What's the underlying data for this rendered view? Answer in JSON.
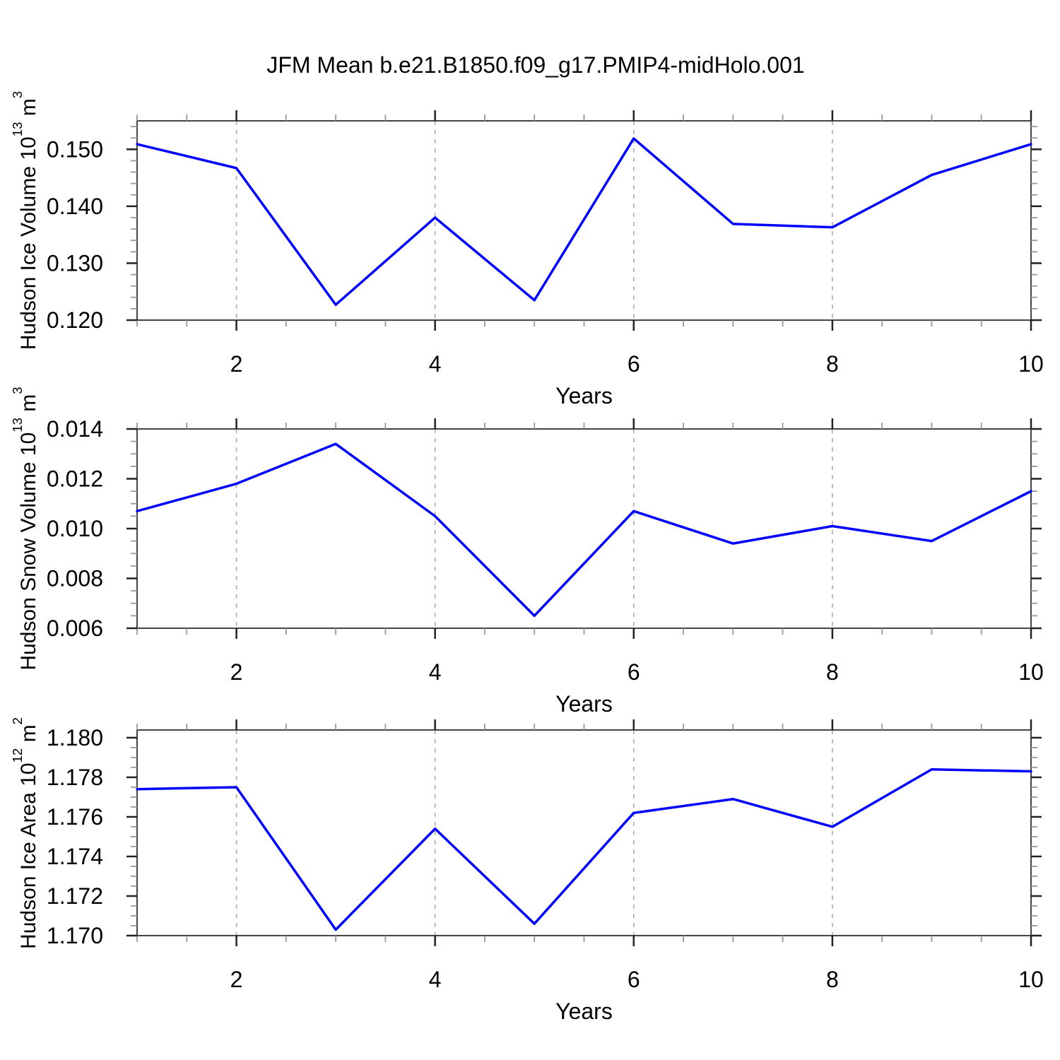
{
  "title": "JFM Mean b.e21.B1850.f09_g17.PMIP4-midHolo.001",
  "colors": {
    "line": "#0000ff",
    "frame": "#444444",
    "major_tick": "#222222",
    "minor_tick": "#999999",
    "gridline": "#aaaaaa",
    "text": "#000000",
    "background": "#ffffff"
  },
  "x_axis": {
    "label": "Years",
    "range": [
      1,
      10
    ],
    "major_ticks": [
      2,
      4,
      6,
      8,
      10
    ],
    "tick_labels": [
      "2",
      "4",
      "6",
      "8",
      "10"
    ],
    "minor_step": 0.5,
    "gridlines": [
      2,
      4,
      6,
      8
    ]
  },
  "chart_data": [
    {
      "type": "line",
      "series_name": "hudson-ice-volume",
      "xlabel": "Years",
      "ylabel_text": "Hudson Ice Volume",
      "ylabel_unit": {
        "base": "10",
        "exp": "13",
        "base2": "m",
        "exp2": "3"
      },
      "x": [
        1,
        2,
        3,
        4,
        5,
        6,
        7,
        8,
        9,
        10
      ],
      "values": [
        0.1509,
        0.1467,
        0.1227,
        0.138,
        0.1235,
        0.1519,
        0.1369,
        0.1363,
        0.1455,
        0.1509
      ],
      "ylim": [
        0.12,
        0.155
      ],
      "y_tick_values": [
        0.12,
        0.13,
        0.14,
        0.15
      ],
      "y_tick_labels": [
        "0.120",
        "0.130",
        "0.140",
        "0.150"
      ],
      "y_minor_step": 0.002,
      "grid": "vertical-dashed"
    },
    {
      "type": "line",
      "series_name": "hudson-snow-volume",
      "xlabel": "Years",
      "ylabel_text": "Hudson Snow Volume",
      "ylabel_unit": {
        "base": "10",
        "exp": "13",
        "base2": "m",
        "exp2": "3"
      },
      "x": [
        1,
        2,
        3,
        4,
        5,
        6,
        7,
        8,
        9,
        10
      ],
      "values": [
        0.0107,
        0.0118,
        0.0134,
        0.0105,
        0.0065,
        0.0107,
        0.0094,
        0.0101,
        0.0095,
        0.0115
      ],
      "ylim": [
        0.006,
        0.014
      ],
      "y_tick_values": [
        0.006,
        0.008,
        0.01,
        0.012,
        0.014
      ],
      "y_tick_labels": [
        "0.006",
        "0.008",
        "0.010",
        "0.012",
        "0.014"
      ],
      "y_minor_step": 0.0005,
      "grid": "vertical-dashed"
    },
    {
      "type": "line",
      "series_name": "hudson-ice-area",
      "xlabel": "Years",
      "ylabel_text": "Hudson Ice Area",
      "ylabel_unit": {
        "base": "10",
        "exp": "12",
        "base2": "m",
        "exp2": "2"
      },
      "x": [
        1,
        2,
        3,
        4,
        5,
        6,
        7,
        8,
        9,
        10
      ],
      "values": [
        1.1774,
        1.1775,
        1.1703,
        1.1754,
        1.1706,
        1.1762,
        1.1769,
        1.1755,
        1.1784,
        1.1783
      ],
      "ylim": [
        1.17,
        1.18039
      ],
      "y_tick_values": [
        1.17,
        1.172,
        1.174,
        1.176,
        1.178,
        1.18
      ],
      "y_tick_labels": [
        "1.170",
        "1.172",
        "1.174",
        "1.176",
        "1.178",
        "1.180"
      ],
      "y_minor_step": 0.0005,
      "grid": "vertical-dashed"
    }
  ]
}
